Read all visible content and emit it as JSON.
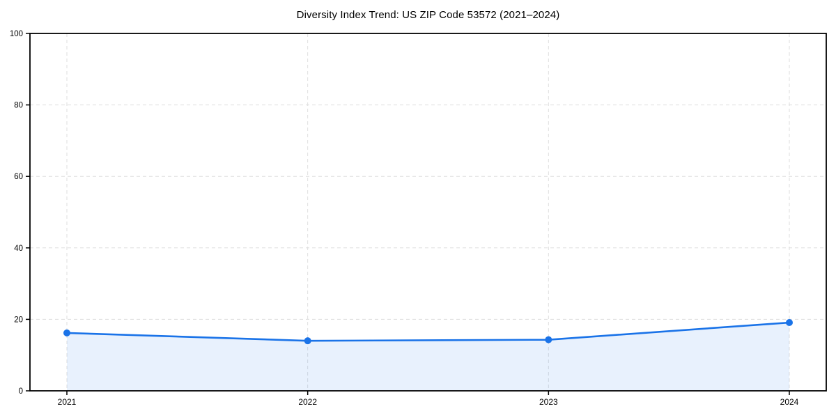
{
  "chart_data": {
    "type": "line",
    "title": "Diversity Index Trend: US ZIP Code 53572 (2021–2024)",
    "categories": [
      "2021",
      "2022",
      "2023",
      "2024"
    ],
    "series": [
      {
        "name": "Diversity Index",
        "values": [
          16.2,
          14.0,
          14.3,
          19.1
        ]
      }
    ],
    "xlabel": "",
    "ylabel": "",
    "ylim": [
      0,
      100
    ],
    "yticks": [
      0,
      20,
      40,
      60,
      80,
      100
    ],
    "grid": true,
    "grid_style": "dashed",
    "legend": "none",
    "area_fill": true,
    "marker": "circle",
    "colors": {
      "line": "#1a73e8",
      "marker": "#1a73e8",
      "area_rgba": "rgba(26,115,232,0.10)",
      "grid": "#dedede",
      "spine": "#000000",
      "tick_label": "#000000",
      "title": "#000000",
      "background": "#ffffff"
    }
  }
}
